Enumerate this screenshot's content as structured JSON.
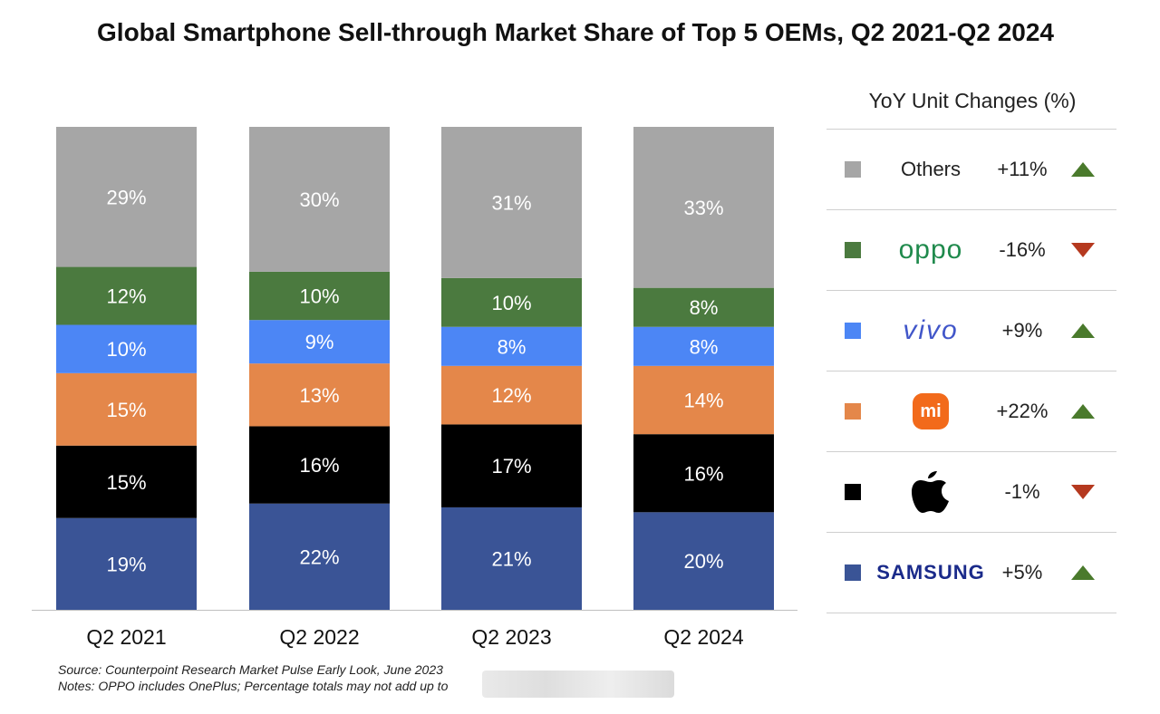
{
  "title": "Global Smartphone Sell-through Market Share of Top 5 OEMs, Q2 2021-Q2 2024",
  "chart_data": {
    "type": "bar",
    "stacked": true,
    "categories": [
      "Q2 2021",
      "Q2 2022",
      "Q2 2023",
      "Q2 2024"
    ],
    "series": [
      {
        "key": "samsung",
        "color": "#3a5496",
        "values": [
          19,
          22,
          21,
          20
        ],
        "labels": [
          "19%",
          "22%",
          "21%",
          "20%"
        ]
      },
      {
        "key": "apple",
        "color": "#000000",
        "values": [
          15,
          16,
          17,
          16
        ],
        "labels": [
          "15%",
          "16%",
          "17%",
          "16%"
        ]
      },
      {
        "key": "xiaomi",
        "color": "#e4874a",
        "values": [
          15,
          13,
          12,
          14
        ],
        "labels": [
          "15%",
          "13%",
          "12%",
          "14%"
        ]
      },
      {
        "key": "vivo",
        "color": "#4c86f5",
        "values": [
          10,
          9,
          8,
          8
        ],
        "labels": [
          "10%",
          "9%",
          "8%",
          "8%"
        ]
      },
      {
        "key": "oppo",
        "color": "#4b7a3f",
        "values": [
          12,
          10,
          10,
          8
        ],
        "labels": [
          "12%",
          "10%",
          "10%",
          "8%"
        ]
      },
      {
        "name": "Others",
        "key": "others",
        "color": "#a6a6a6",
        "values": [
          29,
          30,
          31,
          33
        ],
        "labels": [
          "29%",
          "30%",
          "31%",
          "33%"
        ]
      }
    ],
    "grid": false,
    "legend_position": "right"
  },
  "yoy": {
    "title": "YoY Unit Changes (%)",
    "rows": [
      {
        "brand": "Others",
        "logo": "text",
        "color": "#a6a6a6",
        "change": "+11%",
        "trend": "up"
      },
      {
        "brand": "oppo",
        "logo": "oppo-logo",
        "color": "#4b7a3f",
        "change": "-16%",
        "trend": "down"
      },
      {
        "brand": "vivo",
        "logo": "vivo-logo",
        "color": "#4c86f5",
        "change": "+9%",
        "trend": "up"
      },
      {
        "brand": "mi",
        "logo": "xiaomi-logo",
        "color": "#e4874a",
        "change": "+22%",
        "trend": "up"
      },
      {
        "brand": "",
        "logo": "apple-logo",
        "color": "#000000",
        "change": "-1%",
        "trend": "down"
      },
      {
        "brand": "SAMSUNG",
        "logo": "samsung-logo",
        "color": "#3a5496",
        "change": "+5%",
        "trend": "up"
      }
    ],
    "up_color": "#4a7a2c",
    "down_color": "#b5391f"
  },
  "source": {
    "line1": "Source: Counterpoint Research Market Pulse Early Look, June 2023",
    "line2": "Notes: OPPO includes OnePlus; Percentage totals may not add up to"
  }
}
